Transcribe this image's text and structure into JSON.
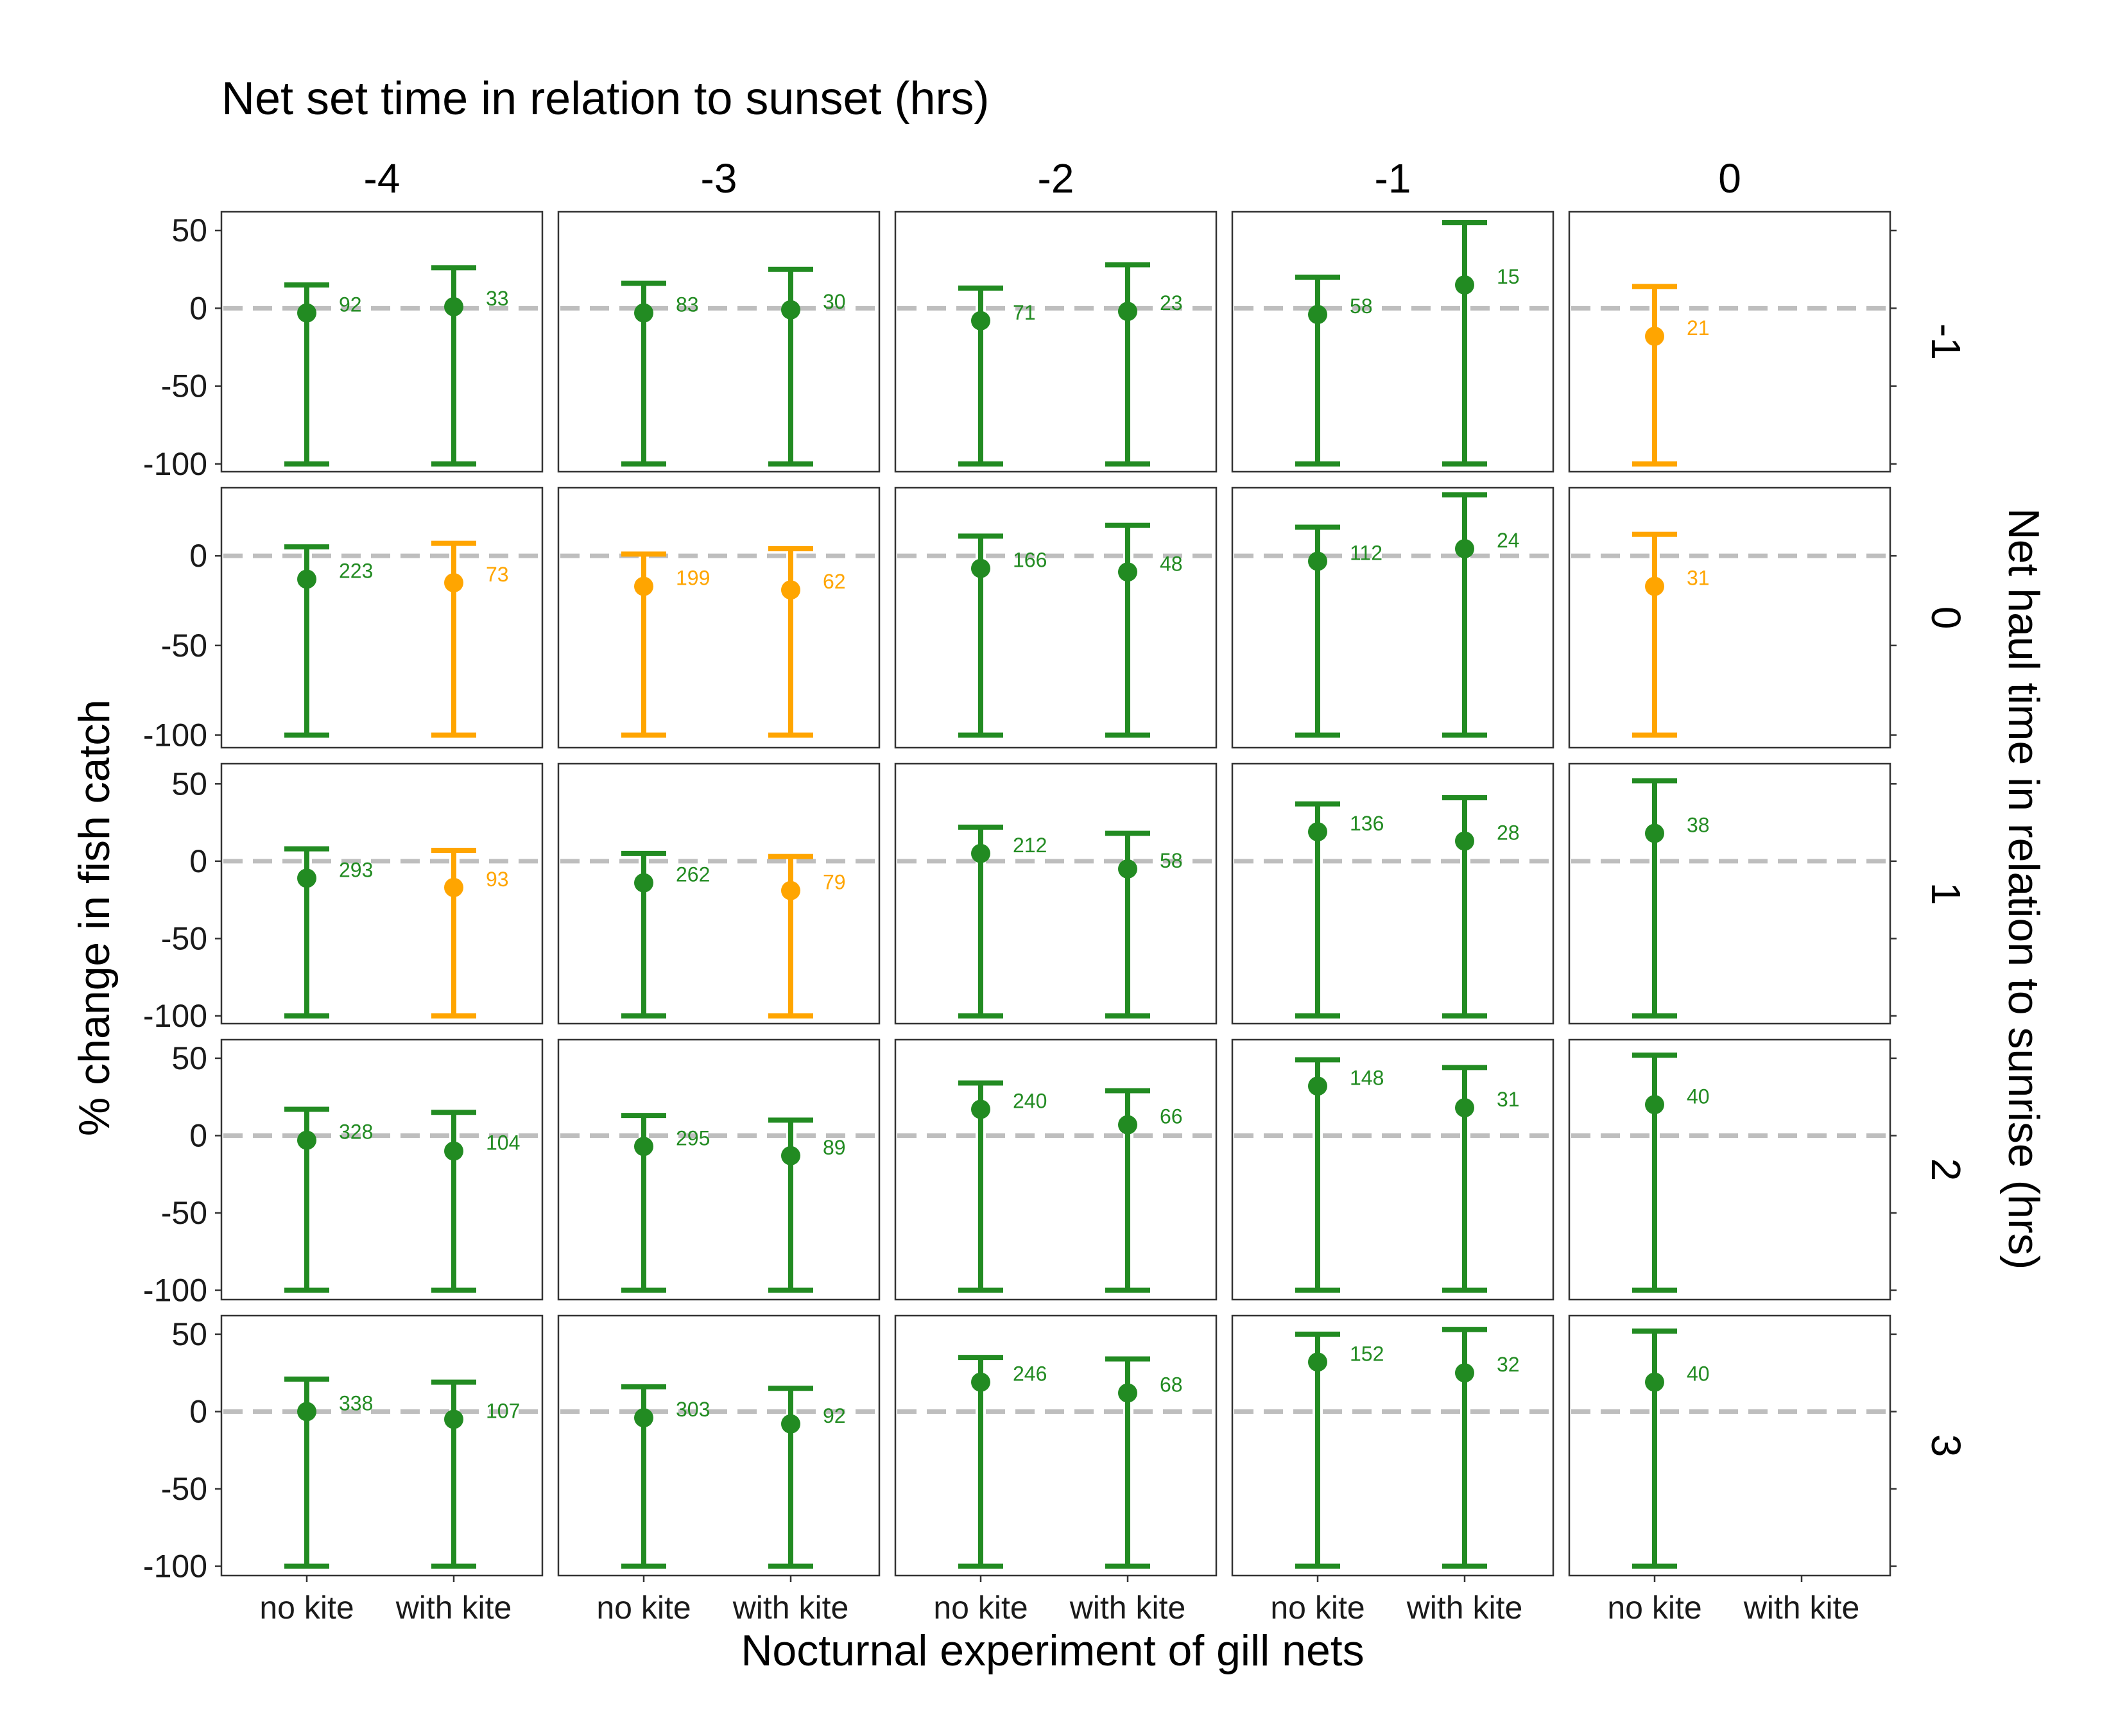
{
  "chart_data": {
    "type": "errorbar",
    "title": "Net set time in relation to sunset (hrs)",
    "xlabel": "Nocturnal experiment of gill nets",
    "ylabel": "% change in fish catch",
    "right_label": "Net haul time in relation to sunrise (hrs)",
    "columns": [
      "-4",
      "-3",
      "-2",
      "-1",
      "0"
    ],
    "rows": [
      "-1",
      "0",
      "1",
      "2",
      "3"
    ],
    "categories": [
      "no kite",
      "with kite"
    ],
    "reference_line": 0,
    "colors": {
      "green": "#228B22",
      "orange": "#FFA500",
      "refline": "#BEBEBE"
    },
    "row_axes": [
      {
        "row": "-1",
        "ylim": [
          -105,
          62
        ],
        "ticks": [
          50,
          0,
          -50,
          -100
        ]
      },
      {
        "row": "0",
        "ylim": [
          -107,
          38
        ],
        "ticks": [
          0,
          -50,
          -100
        ]
      },
      {
        "row": "1",
        "ylim": [
          -105,
          63
        ],
        "ticks": [
          50,
          0,
          -50,
          -100
        ]
      },
      {
        "row": "2",
        "ylim": [
          -106,
          62
        ],
        "ticks": [
          50,
          0,
          -50,
          -100
        ]
      },
      {
        "row": "3",
        "ylim": [
          -106,
          62
        ],
        "ticks": [
          50,
          0,
          -50,
          -100
        ]
      }
    ],
    "points": [
      {
        "row": "-1",
        "col": "-4",
        "cat": "no kite",
        "estimate": -3,
        "lower": -100,
        "upper": 15,
        "n": "92",
        "color": "green"
      },
      {
        "row": "-1",
        "col": "-4",
        "cat": "with kite",
        "estimate": 1,
        "lower": -100,
        "upper": 26,
        "n": "33",
        "color": "green"
      },
      {
        "row": "-1",
        "col": "-3",
        "cat": "no kite",
        "estimate": -3,
        "lower": -100,
        "upper": 16,
        "n": "83",
        "color": "green"
      },
      {
        "row": "-1",
        "col": "-3",
        "cat": "with kite",
        "estimate": -1,
        "lower": -100,
        "upper": 25,
        "n": "30",
        "color": "green"
      },
      {
        "row": "-1",
        "col": "-2",
        "cat": "no kite",
        "estimate": -8,
        "lower": -100,
        "upper": 13,
        "n": "71",
        "color": "green"
      },
      {
        "row": "-1",
        "col": "-2",
        "cat": "with kite",
        "estimate": -2,
        "lower": -100,
        "upper": 28,
        "n": "23",
        "color": "green"
      },
      {
        "row": "-1",
        "col": "-1",
        "cat": "no kite",
        "estimate": -4,
        "lower": -100,
        "upper": 20,
        "n": "58",
        "color": "green"
      },
      {
        "row": "-1",
        "col": "-1",
        "cat": "with kite",
        "estimate": 15,
        "lower": -100,
        "upper": 55,
        "n": "15",
        "color": "green"
      },
      {
        "row": "-1",
        "col": "0",
        "cat": "no kite",
        "estimate": -18,
        "lower": -100,
        "upper": 14,
        "n": "21",
        "color": "orange"
      },
      {
        "row": "0",
        "col": "-4",
        "cat": "no kite",
        "estimate": -13,
        "lower": -100,
        "upper": 5,
        "n": "223",
        "color": "green"
      },
      {
        "row": "0",
        "col": "-4",
        "cat": "with kite",
        "estimate": -15,
        "lower": -100,
        "upper": 7,
        "n": "73",
        "color": "orange"
      },
      {
        "row": "0",
        "col": "-3",
        "cat": "no kite",
        "estimate": -17,
        "lower": -100,
        "upper": 1,
        "n": "199",
        "color": "orange"
      },
      {
        "row": "0",
        "col": "-3",
        "cat": "with kite",
        "estimate": -19,
        "lower": -100,
        "upper": 4,
        "n": "62",
        "color": "orange"
      },
      {
        "row": "0",
        "col": "-2",
        "cat": "no kite",
        "estimate": -7,
        "lower": -100,
        "upper": 11,
        "n": "166",
        "color": "green"
      },
      {
        "row": "0",
        "col": "-2",
        "cat": "with kite",
        "estimate": -9,
        "lower": -100,
        "upper": 17,
        "n": "48",
        "color": "green"
      },
      {
        "row": "0",
        "col": "-1",
        "cat": "no kite",
        "estimate": -3,
        "lower": -100,
        "upper": 16,
        "n": "112",
        "color": "green"
      },
      {
        "row": "0",
        "col": "-1",
        "cat": "with kite",
        "estimate": 4,
        "lower": -100,
        "upper": 34,
        "n": "24",
        "color": "green"
      },
      {
        "row": "0",
        "col": "0",
        "cat": "no kite",
        "estimate": -17,
        "lower": -100,
        "upper": 12,
        "n": "31",
        "color": "orange"
      },
      {
        "row": "1",
        "col": "-4",
        "cat": "no kite",
        "estimate": -11,
        "lower": -100,
        "upper": 8,
        "n": "293",
        "color": "green"
      },
      {
        "row": "1",
        "col": "-4",
        "cat": "with kite",
        "estimate": -17,
        "lower": -100,
        "upper": 7,
        "n": "93",
        "color": "orange"
      },
      {
        "row": "1",
        "col": "-3",
        "cat": "no kite",
        "estimate": -14,
        "lower": -100,
        "upper": 5,
        "n": "262",
        "color": "green"
      },
      {
        "row": "1",
        "col": "-3",
        "cat": "with kite",
        "estimate": -19,
        "lower": -100,
        "upper": 3,
        "n": "79",
        "color": "orange"
      },
      {
        "row": "1",
        "col": "-2",
        "cat": "no kite",
        "estimate": 5,
        "lower": -100,
        "upper": 22,
        "n": "212",
        "color": "green"
      },
      {
        "row": "1",
        "col": "-2",
        "cat": "with kite",
        "estimate": -5,
        "lower": -100,
        "upper": 18,
        "n": "58",
        "color": "green"
      },
      {
        "row": "1",
        "col": "-1",
        "cat": "no kite",
        "estimate": 19,
        "lower": -100,
        "upper": 37,
        "n": "136",
        "color": "green"
      },
      {
        "row": "1",
        "col": "-1",
        "cat": "with kite",
        "estimate": 13,
        "lower": -100,
        "upper": 41,
        "n": "28",
        "color": "green"
      },
      {
        "row": "1",
        "col": "0",
        "cat": "no kite",
        "estimate": 18,
        "lower": -100,
        "upper": 52,
        "n": "38",
        "color": "green"
      },
      {
        "row": "2",
        "col": "-4",
        "cat": "no kite",
        "estimate": -3,
        "lower": -100,
        "upper": 17,
        "n": "328",
        "color": "green"
      },
      {
        "row": "2",
        "col": "-4",
        "cat": "with kite",
        "estimate": -10,
        "lower": -100,
        "upper": 15,
        "n": "104",
        "color": "green"
      },
      {
        "row": "2",
        "col": "-3",
        "cat": "no kite",
        "estimate": -7,
        "lower": -100,
        "upper": 13,
        "n": "295",
        "color": "green"
      },
      {
        "row": "2",
        "col": "-3",
        "cat": "with kite",
        "estimate": -13,
        "lower": -100,
        "upper": 10,
        "n": "89",
        "color": "green"
      },
      {
        "row": "2",
        "col": "-2",
        "cat": "no kite",
        "estimate": 17,
        "lower": -100,
        "upper": 34,
        "n": "240",
        "color": "green"
      },
      {
        "row": "2",
        "col": "-2",
        "cat": "with kite",
        "estimate": 7,
        "lower": -100,
        "upper": 29,
        "n": "66",
        "color": "green"
      },
      {
        "row": "2",
        "col": "-1",
        "cat": "no kite",
        "estimate": 32,
        "lower": -100,
        "upper": 49,
        "n": "148",
        "color": "green"
      },
      {
        "row": "2",
        "col": "-1",
        "cat": "with kite",
        "estimate": 18,
        "lower": -100,
        "upper": 44,
        "n": "31",
        "color": "green"
      },
      {
        "row": "2",
        "col": "0",
        "cat": "no kite",
        "estimate": 20,
        "lower": -100,
        "upper": 52,
        "n": "40",
        "color": "green"
      },
      {
        "row": "3",
        "col": "-4",
        "cat": "no kite",
        "estimate": 0,
        "lower": -100,
        "upper": 21,
        "n": "338",
        "color": "green"
      },
      {
        "row": "3",
        "col": "-4",
        "cat": "with kite",
        "estimate": -5,
        "lower": -100,
        "upper": 19,
        "n": "107",
        "color": "green"
      },
      {
        "row": "3",
        "col": "-3",
        "cat": "no kite",
        "estimate": -4,
        "lower": -100,
        "upper": 16,
        "n": "303",
        "color": "green"
      },
      {
        "row": "3",
        "col": "-3",
        "cat": "with kite",
        "estimate": -8,
        "lower": -100,
        "upper": 15,
        "n": "92",
        "color": "green"
      },
      {
        "row": "3",
        "col": "-2",
        "cat": "no kite",
        "estimate": 19,
        "lower": -100,
        "upper": 35,
        "n": "246",
        "color": "green"
      },
      {
        "row": "3",
        "col": "-2",
        "cat": "with kite",
        "estimate": 12,
        "lower": -100,
        "upper": 34,
        "n": "68",
        "color": "green"
      },
      {
        "row": "3",
        "col": "-1",
        "cat": "no kite",
        "estimate": 32,
        "lower": -100,
        "upper": 50,
        "n": "152",
        "color": "green"
      },
      {
        "row": "3",
        "col": "-1",
        "cat": "with kite",
        "estimate": 25,
        "lower": -100,
        "upper": 53,
        "n": "32",
        "color": "green"
      },
      {
        "row": "3",
        "col": "0",
        "cat": "no kite",
        "estimate": 19,
        "lower": -100,
        "upper": 52,
        "n": "40",
        "color": "green"
      }
    ]
  }
}
